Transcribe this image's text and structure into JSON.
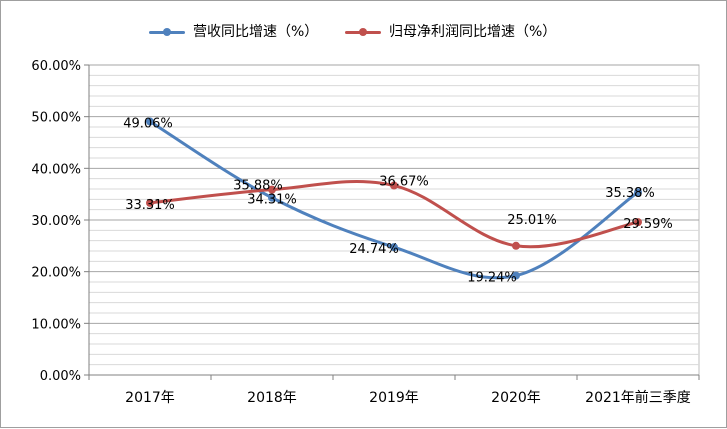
{
  "chart_data": {
    "type": "line",
    "categories": [
      "2017年",
      "2018年",
      "2019年",
      "2020年",
      "2021年前三季度"
    ],
    "series": [
      {
        "name": "营收同比增速（%）",
        "values": [
          49.06,
          34.31,
          24.74,
          19.24,
          35.38
        ],
        "color": "#4f81bd"
      },
      {
        "name": "归母净利润同比增速（%）",
        "values": [
          33.31,
          35.88,
          36.67,
          25.01,
          29.59
        ],
        "color": "#c0504d"
      }
    ],
    "data_labels": {
      "series_0": [
        "49.06%",
        "34.31%",
        "24.74%",
        "19.24%",
        "35.38%"
      ],
      "series_1": [
        "33.31%",
        "35.88%",
        "36.67%",
        "25.01%",
        "29.59%"
      ]
    },
    "y_ticks": [
      "0.00%",
      "10.00%",
      "20.00%",
      "30.00%",
      "40.00%",
      "50.00%",
      "60.00%"
    ],
    "ylim": [
      0,
      60
    ],
    "grid": true,
    "smooth": true,
    "legend_position": "top",
    "title": "",
    "xlabel": "",
    "ylabel": ""
  }
}
